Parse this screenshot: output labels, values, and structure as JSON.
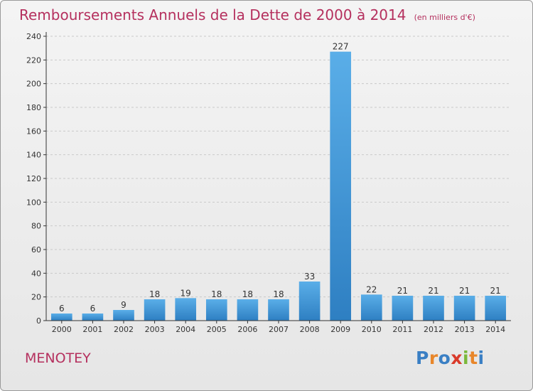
{
  "title": "Remboursements Annuels de la Dette de 2000 à 2014",
  "unit_note": "(en milliers d'€)",
  "place": "MENOTEY",
  "logo": {
    "text": "Proxiti",
    "letter_colors": [
      "#3a7fc4",
      "#e8862a",
      "#3a7fc4",
      "#d93a2a",
      "#7ab83a",
      "#e8862a",
      "#3a7fc4"
    ]
  },
  "colors": {
    "title": "#b5305e",
    "bar_light": "#5aaee8",
    "bar_dark": "#2e7fc2",
    "grid": "#c9c9c9",
    "axis": "#333333"
  },
  "chart_data": {
    "type": "bar",
    "title": "Remboursements Annuels de la Dette de 2000 à 2014",
    "xlabel": "",
    "ylabel": "",
    "categories": [
      "2000",
      "2001",
      "2002",
      "2003",
      "2004",
      "2005",
      "2006",
      "2007",
      "2008",
      "2009",
      "2010",
      "2011",
      "2012",
      "2013",
      "2014"
    ],
    "values": [
      6,
      6,
      9,
      18,
      19,
      18,
      18,
      18,
      33,
      227,
      22,
      21,
      21,
      21,
      21
    ],
    "ylim": [
      0,
      240
    ],
    "yticks": [
      0,
      20,
      40,
      60,
      80,
      100,
      120,
      140,
      160,
      180,
      200,
      220,
      240
    ],
    "grid": true,
    "data_labels": true
  }
}
